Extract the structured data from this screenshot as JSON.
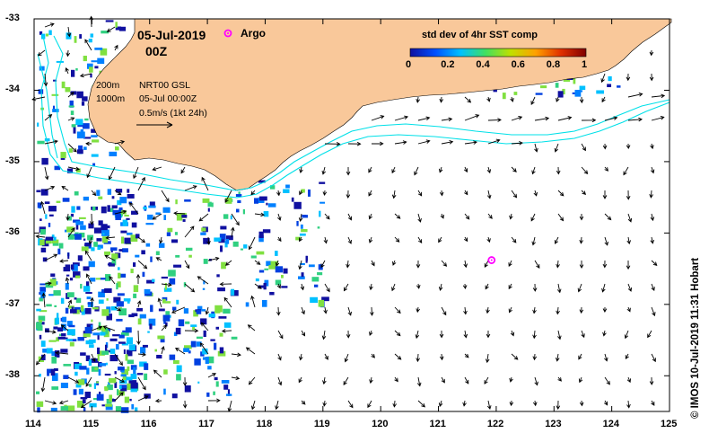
{
  "title": {
    "date": "05-Jul-2019",
    "time": "00Z"
  },
  "argo_legend": {
    "label": "Argo",
    "color": "#ff00ff"
  },
  "colorbar": {
    "title": "std dev of 4hr SST comp",
    "ticks": [
      "0",
      "0.2",
      "0.4",
      "0.6",
      "0.8",
      "1"
    ],
    "colors": [
      "#1010a0",
      "#0050ff",
      "#00c0ff",
      "#40e060",
      "#c0e000",
      "#ffa000",
      "#e03000",
      "#800000"
    ]
  },
  "legend": {
    "isobath_200": "200m",
    "isobath_1000": "1000m",
    "product": "NRT00 GSL",
    "valid": "05-Jul 00:00Z",
    "scale": "0.5m/s (1kt 24h)"
  },
  "credit": "© IMOS 10-Jul-2019 11:31 Hobart",
  "axes": {
    "x_ticks": [
      "114",
      "115",
      "116",
      "117",
      "118",
      "119",
      "120",
      "121",
      "122",
      "123",
      "124",
      "125"
    ],
    "y_ticks": [
      "-33",
      "-34",
      "-35",
      "-36",
      "-37",
      "-38"
    ],
    "xlim": [
      114,
      125
    ],
    "ylim": [
      -38.5,
      -33
    ]
  },
  "colors": {
    "land": "#f9c89a",
    "isobath": "#00e0e8",
    "arrow": "#000000"
  },
  "argo_float": {
    "lon": 121.92,
    "lat": -36.38
  }
}
